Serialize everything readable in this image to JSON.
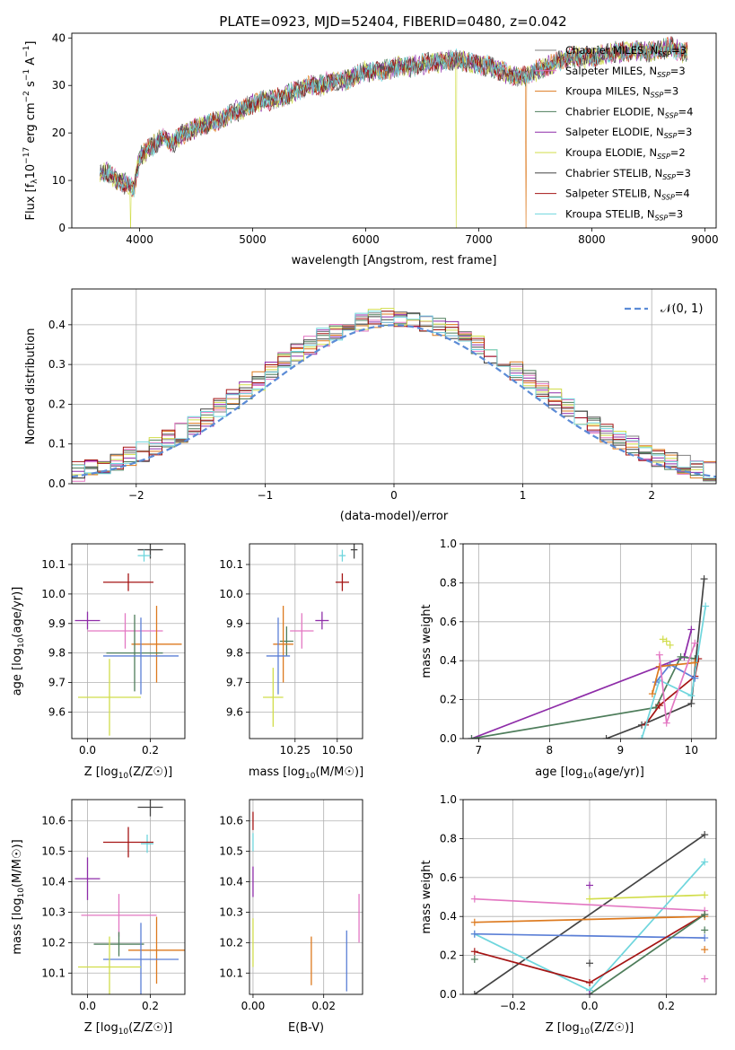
{
  "figure": {
    "title": "PLATE=0923, MJD=52404, FIBERID=0480, z=0.042"
  },
  "colors": {
    "Chabrier MILES": "#808080",
    "Salpeter MILES": "#e377c2",
    "Kroupa MILES": "#dd7a1f",
    "Chabrier ELODIE": "#4e7d5b",
    "Salpeter ELODIE": "#8e2ca8",
    "Kroupa ELODIE": "#d1dd4a",
    "Chabrier STELIB": "#444444",
    "Salpeter STELIB": "#a51515",
    "Kroupa STELIB": "#6fd6dd",
    "Kroupa MILES line": "#5b7fd6"
  },
  "chart_data": [
    {
      "id": "spectrum",
      "type": "line",
      "xlabel": "wavelength [Angstrom, rest frame]",
      "ylabel": "Flux [f",
      "xlim": [
        3400,
        9100
      ],
      "ylim": [
        0,
        41
      ],
      "xticks": [
        4000,
        5000,
        6000,
        7000,
        8000,
        9000
      ],
      "yticks": [
        0,
        10,
        20,
        30,
        40
      ],
      "grid": false,
      "legend_position": "top-right",
      "legend": [
        {
          "name": "Chabrier MILES",
          "nssp": "3"
        },
        {
          "name": "Salpeter MILES",
          "nssp": "3"
        },
        {
          "name": "Kroupa MILES",
          "nssp": "3"
        },
        {
          "name": "Chabrier ELODIE",
          "nssp": "4"
        },
        {
          "name": "Salpeter ELODIE",
          "nssp": "3"
        },
        {
          "name": "Kroupa ELODIE",
          "nssp": "2"
        },
        {
          "name": "Chabrier STELIB",
          "nssp": "3"
        },
        {
          "name": "Salpeter STELIB",
          "nssp": "4"
        },
        {
          "name": "Kroupa STELIB",
          "nssp": "3"
        }
      ],
      "continuum": {
        "x": [
          3650,
          3700,
          3800,
          3900,
          3950,
          4000,
          4100,
          4200,
          4300,
          4400,
          4500,
          4600,
          4700,
          4800,
          4900,
          5000,
          5100,
          5200,
          5300,
          5400,
          5500,
          5600,
          5700,
          5800,
          5900,
          6000,
          6100,
          6200,
          6300,
          6400,
          6500,
          6600,
          6700,
          6800,
          6900,
          7000,
          7100,
          7200,
          7300,
          7400,
          7500,
          7600,
          7700,
          7800,
          7900,
          8000,
          8100,
          8200,
          8300,
          8400,
          8500,
          8600,
          8700,
          8800
        ],
        "y": [
          11,
          12,
          10,
          9,
          8,
          15,
          17,
          19,
          18,
          20,
          21,
          22,
          22.5,
          24,
          25,
          26,
          27,
          27,
          28,
          29,
          30,
          30,
          31,
          31,
          32,
          33,
          33,
          33.5,
          34,
          34,
          34.5,
          35,
          35,
          35.5,
          35,
          34.5,
          34,
          33,
          32,
          32,
          33,
          34,
          35,
          36,
          36,
          36,
          36.5,
          37,
          37,
          37.5,
          37,
          37.5,
          38,
          37
        ]
      },
      "drops": [
        {
          "series": "Kroupa ELODIE",
          "x": 3920
        },
        {
          "series": "Kroupa ELODIE",
          "x": 6800
        },
        {
          "series": "Kroupa MILES",
          "x": 7420
        }
      ]
    },
    {
      "id": "residuals",
      "type": "line",
      "xlabel": "(data-model)/error",
      "ylabel": "Normed distribution",
      "xlim": [
        -2.5,
        2.5
      ],
      "ylim": [
        0,
        0.49
      ],
      "xticks": [
        -2,
        -1,
        0,
        1,
        2
      ],
      "yticks": [
        0.0,
        0.1,
        0.2,
        0.3,
        0.4
      ],
      "grid": true,
      "legend_position": "top-right",
      "legend_label": "𝒩(0, 1)",
      "bin_width": 0.1
    },
    {
      "id": "age-vs-Z",
      "type": "scatter",
      "xlabel": "Z [log",
      "ylabel": "age  [log",
      "xlim": [
        -0.05,
        0.31
      ],
      "ylim": [
        9.51,
        10.17
      ],
      "xticks": [
        0.0,
        0.2
      ],
      "yticks": [
        9.6,
        9.7,
        9.8,
        9.9,
        10.0,
        10.1
      ],
      "grid": true,
      "points": [
        {
          "series": "Chabrier STELIB",
          "x": 0.2,
          "xerr": 0.04,
          "y": 10.15,
          "yerr": 0.03
        },
        {
          "series": "Kroupa STELIB",
          "x": 0.18,
          "xerr": 0.02,
          "y": 10.13,
          "yerr": 0.02
        },
        {
          "series": "Salpeter STELIB",
          "x": 0.13,
          "xerr": 0.08,
          "y": 10.04,
          "yerr": 0.03
        },
        {
          "series": "Salpeter ELODIE",
          "x": 0.0,
          "xerr": 0.04,
          "y": 9.91,
          "yerr": 0.03
        },
        {
          "series": "Salpeter MILES",
          "x": 0.12,
          "xerr": 0.12,
          "y": 9.875,
          "yerr": 0.06
        },
        {
          "series": "Kroupa MILES",
          "x": 0.22,
          "xerr": 0.08,
          "y": 9.83,
          "yerr": 0.13
        },
        {
          "series": "Chabrier ELODIE",
          "x": 0.15,
          "xerr": 0.09,
          "y": 9.8,
          "yerr": 0.13
        },
        {
          "series": "Kroupa MILES line",
          "x": 0.17,
          "xerr": 0.12,
          "y": 9.79,
          "yerr": 0.13
        },
        {
          "series": "Kroupa ELODIE",
          "x": 0.07,
          "xerr": 0.1,
          "y": 9.65,
          "yerr": 0.13
        }
      ]
    },
    {
      "id": "age-vs-mass",
      "type": "scatter",
      "xlabel": "mass [log",
      "ylabel": "",
      "xlim": [
        9.98,
        10.65
      ],
      "ylim": [
        9.51,
        10.17
      ],
      "xticks": [
        10.25,
        10.5
      ],
      "yticks": [
        9.6,
        9.7,
        9.8,
        9.9,
        10.0,
        10.1
      ],
      "grid": true,
      "points": [
        {
          "series": "Chabrier STELIB",
          "x": 10.6,
          "xerr": 0.02,
          "y": 10.15,
          "yerr": 0.03
        },
        {
          "series": "Kroupa STELIB",
          "x": 10.53,
          "xerr": 0.02,
          "y": 10.13,
          "yerr": 0.02
        },
        {
          "series": "Salpeter STELIB",
          "x": 10.53,
          "xerr": 0.04,
          "y": 10.04,
          "yerr": 0.03
        },
        {
          "series": "Salpeter ELODIE",
          "x": 10.41,
          "xerr": 0.04,
          "y": 9.91,
          "yerr": 0.03
        },
        {
          "series": "Salpeter MILES",
          "x": 10.29,
          "xerr": 0.07,
          "y": 9.875,
          "yerr": 0.06
        },
        {
          "series": "Chabrier ELODIE",
          "x": 10.2,
          "xerr": 0.04,
          "y": 9.84,
          "yerr": 0.05
        },
        {
          "series": "Kroupa MILES",
          "x": 10.18,
          "xerr": 0.06,
          "y": 9.83,
          "yerr": 0.13
        },
        {
          "series": "Kroupa MILES line",
          "x": 10.15,
          "xerr": 0.07,
          "y": 9.79,
          "yerr": 0.13
        },
        {
          "series": "Kroupa ELODIE",
          "x": 10.12,
          "xerr": 0.06,
          "y": 9.65,
          "yerr": 0.1
        }
      ]
    },
    {
      "id": "massweight-vs-age",
      "type": "line",
      "xlabel": "age  [log",
      "ylabel": "mass weight",
      "xlim": [
        6.78,
        10.35
      ],
      "ylim": [
        0,
        1
      ],
      "xticks": [
        7,
        8,
        9,
        10
      ],
      "yticks": [
        0.0,
        0.2,
        0.4,
        0.6,
        0.8,
        1.0
      ],
      "grid": true,
      "lines": [
        {
          "series": "Salpeter ELODIE",
          "x": [
            6.9,
            9.9,
            10.0
          ],
          "y": [
            0.0,
            0.42,
            0.56
          ]
        },
        {
          "series": "Chabrier ELODIE",
          "x": [
            6.9,
            9.5,
            9.85,
            10.05
          ],
          "y": [
            0.0,
            0.16,
            0.42,
            0.41
          ]
        },
        {
          "series": "Chabrier STELIB",
          "x": [
            8.8,
            9.3,
            10.0,
            10.18
          ],
          "y": [
            0.0,
            0.07,
            0.18,
            0.82
          ]
        },
        {
          "series": "Salpeter STELIB",
          "x": [
            9.35,
            9.55,
            10.05,
            10.1
          ],
          "y": [
            0.07,
            0.17,
            0.32,
            0.41
          ]
        },
        {
          "series": "Kroupa STELIB",
          "x": [
            9.3,
            9.55,
            10.0,
            10.2
          ],
          "y": [
            0.0,
            0.3,
            0.22,
            0.68
          ]
        },
        {
          "series": "Kroupa MILES line",
          "x": [
            9.5,
            9.7,
            10.05
          ],
          "y": [
            0.29,
            0.38,
            0.31
          ]
        },
        {
          "series": "Kroupa MILES",
          "x": [
            9.45,
            9.55,
            10.05
          ],
          "y": [
            0.23,
            0.37,
            0.39
          ]
        },
        {
          "series": "Salpeter MILES",
          "x": [
            9.55,
            9.65,
            10.05
          ],
          "y": [
            0.43,
            0.08,
            0.49
          ]
        }
      ],
      "markers": [
        {
          "series": "Kroupa ELODIE",
          "x": [
            9.6,
            9.65,
            9.7
          ],
          "y": [
            0.51,
            0.5,
            0.48
          ]
        }
      ]
    },
    {
      "id": "mass-vs-Z",
      "type": "scatter",
      "xlabel": "Z [log",
      "ylabel": "mass [log",
      "xlim": [
        -0.05,
        0.31
      ],
      "ylim": [
        10.03,
        10.67
      ],
      "xticks": [
        0.0,
        0.2
      ],
      "yticks": [
        10.1,
        10.2,
        10.3,
        10.4,
        10.5,
        10.6
      ],
      "grid": true,
      "points": [
        {
          "series": "Chabrier STELIB",
          "x": 0.2,
          "xerr": 0.04,
          "y": 10.645,
          "yerr": 0.03
        },
        {
          "series": "Kroupa STELIB",
          "x": 0.19,
          "xerr": 0.02,
          "y": 10.525,
          "yerr": 0.03
        },
        {
          "series": "Salpeter STELIB",
          "x": 0.13,
          "xerr": 0.08,
          "y": 10.53,
          "yerr": 0.05
        },
        {
          "series": "Salpeter ELODIE",
          "x": 0.0,
          "xerr": 0.04,
          "y": 10.41,
          "yerr": 0.07
        },
        {
          "series": "Salpeter MILES",
          "x": 0.1,
          "xerr": 0.12,
          "y": 10.29,
          "yerr": 0.07
        },
        {
          "series": "Chabrier ELODIE",
          "x": 0.1,
          "xerr": 0.08,
          "y": 10.195,
          "yerr": 0.04
        },
        {
          "series": "Kroupa MILES",
          "x": 0.22,
          "xerr": 0.09,
          "y": 10.175,
          "yerr": 0.11
        },
        {
          "series": "Kroupa MILES line",
          "x": 0.17,
          "xerr": 0.12,
          "y": 10.145,
          "yerr": 0.12
        },
        {
          "series": "Kroupa ELODIE",
          "x": 0.07,
          "xerr": 0.1,
          "y": 10.12,
          "yerr": 0.1
        }
      ]
    },
    {
      "id": "mass-vs-ebv",
      "type": "scatter",
      "xlabel": "E(B-V)",
      "ylabel": "",
      "xlim": [
        -0.001,
        0.031
      ],
      "ylim": [
        10.03,
        10.67
      ],
      "xticks": [
        0.0,
        0.02
      ],
      "yticks": [
        10.1,
        10.2,
        10.3,
        10.4,
        10.5,
        10.6
      ],
      "grid": true,
      "points": [
        {
          "series": "Salpeter STELIB",
          "x": 0.0,
          "y": 10.6,
          "yerr": 0.03
        },
        {
          "series": "Kroupa STELIB",
          "x": 0.0,
          "y": 10.53,
          "yerr": 0.03
        },
        {
          "series": "Salpeter ELODIE",
          "x": 0.0,
          "y": 10.4,
          "yerr": 0.05
        },
        {
          "series": "Kroupa ELODIE",
          "x": 0.0,
          "y": 10.2,
          "yerr": 0.08
        },
        {
          "series": "Kroupa MILES",
          "x": 0.0165,
          "y": 10.14,
          "yerr": 0.08
        },
        {
          "series": "Kroupa MILES line",
          "x": 0.0265,
          "y": 10.14,
          "yerr": 0.1
        },
        {
          "series": "Salpeter MILES",
          "x": 0.03,
          "y": 10.28,
          "yerr": 0.08
        }
      ]
    },
    {
      "id": "massweight-vs-Z",
      "type": "line",
      "xlabel": "Z [log",
      "ylabel": "mass weight",
      "xlim": [
        -0.33,
        0.33
      ],
      "ylim": [
        0,
        1
      ],
      "xticks": [
        -0.2,
        0.0,
        0.2
      ],
      "yticks": [
        0.0,
        0.2,
        0.4,
        0.6,
        0.8,
        1.0
      ],
      "grid": true,
      "lines": [
        {
          "series": "Chabrier STELIB",
          "x": [
            -0.3,
            0.3
          ],
          "y": [
            0.0,
            0.82
          ]
        },
        {
          "series": "Kroupa STELIB",
          "x": [
            -0.3,
            0.0,
            0.3
          ],
          "y": [
            0.31,
            0.02,
            0.68
          ]
        },
        {
          "series": "Kroupa ELODIE",
          "x": [
            0.0,
            0.3
          ],
          "y": [
            0.49,
            0.51
          ]
        },
        {
          "series": "Salpeter MILES",
          "x": [
            -0.3,
            0.3
          ],
          "y": [
            0.49,
            0.43
          ]
        },
        {
          "series": "Kroupa MILES",
          "x": [
            -0.3,
            0.3
          ],
          "y": [
            0.37,
            0.4
          ]
        },
        {
          "series": "Kroupa MILES line",
          "x": [
            -0.3,
            0.3
          ],
          "y": [
            0.31,
            0.29
          ]
        },
        {
          "series": "Salpeter STELIB",
          "x": [
            -0.3,
            0.0,
            0.3
          ],
          "y": [
            0.22,
            0.06,
            0.41
          ]
        },
        {
          "series": "Chabrier ELODIE",
          "x": [
            0.0,
            0.3
          ],
          "y": [
            0.0,
            0.41
          ]
        }
      ],
      "markers": [
        {
          "series": "Salpeter ELODIE",
          "x": [
            0.0,
            0.0
          ],
          "y": [
            0.56,
            0.0
          ]
        },
        {
          "series": "Chabrier ELODIE",
          "x": [
            -0.3
          ],
          "y": [
            0.18
          ]
        },
        {
          "series": "Chabrier STELIB",
          "x": [
            0.0
          ],
          "y": [
            0.16
          ]
        },
        {
          "series": "Kroupa MILES",
          "x": [
            0.3
          ],
          "y": [
            0.23
          ]
        },
        {
          "series": "Salpeter MILES",
          "x": [
            0.3
          ],
          "y": [
            0.08
          ]
        },
        {
          "series": "Chabrier ELODIE",
          "x": [
            0.3
          ],
          "y": [
            0.33
          ]
        }
      ]
    }
  ]
}
